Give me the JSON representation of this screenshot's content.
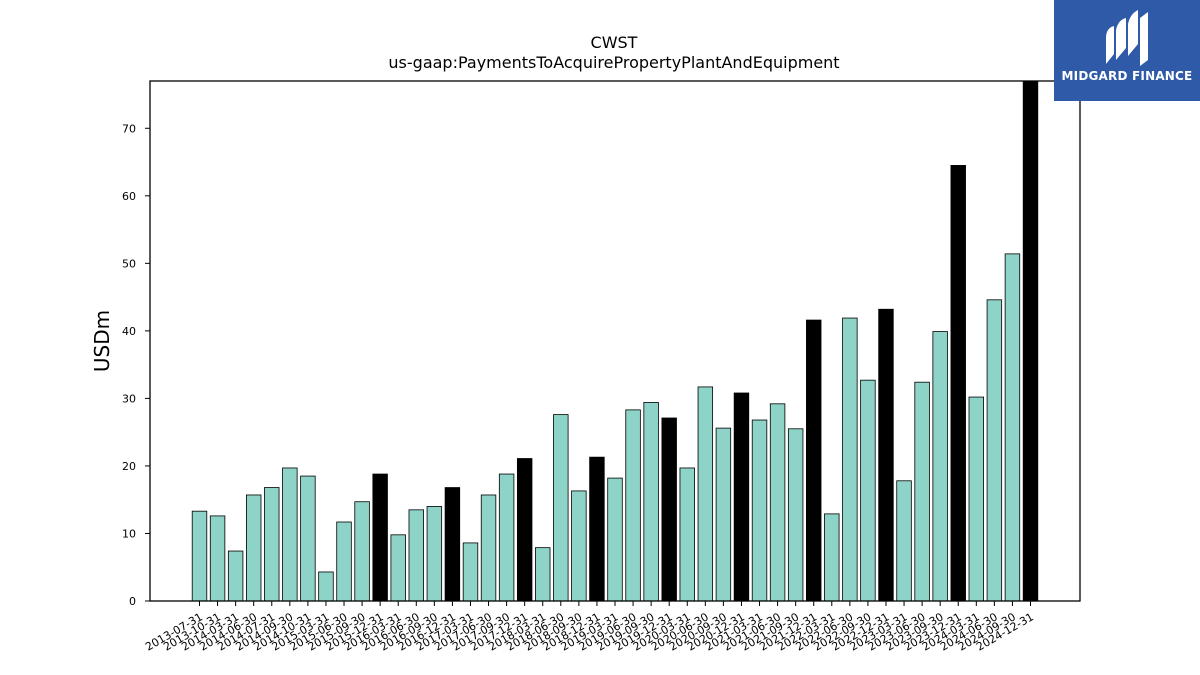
{
  "logo": {
    "text": "MIDGARD FINANCE",
    "icon": "mf-logo-icon",
    "background": "#2f5aa8"
  },
  "chart_data": {
    "type": "bar",
    "title": "CWST",
    "subtitle": "us-gaap:PaymentsToAcquirePropertyPlantAndEquipment",
    "xlabel": "",
    "ylabel": "USDm",
    "ylim": [
      0,
      77
    ],
    "yticks": [
      0,
      10,
      20,
      30,
      40,
      50,
      60,
      70
    ],
    "grid": false,
    "colors": {
      "quarter": "#8dd3c7",
      "annual": "#000000",
      "edge": "#000000"
    },
    "categories": [
      "2013-07-31",
      "2013-10-31",
      "2014-03-31",
      "2014-06-30",
      "2014-07-31",
      "2014-09-30",
      "2014-10-31",
      "2015-03-31",
      "2015-06-30",
      "2015-09-30",
      "2015-12-31",
      "2016-03-31",
      "2016-06-30",
      "2016-09-30",
      "2016-12-31",
      "2017-03-31",
      "2017-06-30",
      "2017-09-30",
      "2017-12-31",
      "2018-03-31",
      "2018-06-30",
      "2018-09-30",
      "2018-12-31",
      "2019-03-31",
      "2019-06-30",
      "2019-09-30",
      "2019-12-31",
      "2020-03-31",
      "2020-06-30",
      "2020-09-30",
      "2020-12-31",
      "2021-03-31",
      "2021-06-30",
      "2021-09-30",
      "2021-12-31",
      "2022-03-31",
      "2022-06-30",
      "2022-09-30",
      "2022-12-31",
      "2023-03-31",
      "2023-06-30",
      "2023-09-30",
      "2023-12-31",
      "2024-03-31",
      "2024-06-30",
      "2024-09-30",
      "2024-12-31"
    ],
    "values": [
      13.3,
      12.6,
      7.4,
      15.7,
      16.8,
      19.7,
      18.5,
      4.3,
      11.7,
      14.7,
      18.8,
      9.8,
      13.5,
      14.0,
      16.8,
      8.6,
      15.7,
      18.8,
      21.1,
      7.9,
      27.6,
      16.3,
      21.3,
      18.2,
      28.3,
      29.4,
      27.1,
      19.7,
      31.7,
      25.6,
      30.8,
      26.8,
      29.2,
      25.5,
      41.6,
      12.9,
      41.9,
      32.7,
      43.2,
      17.8,
      32.4,
      39.9,
      64.5,
      30.2,
      44.6,
      51.4,
      77.0
    ],
    "annual": [
      false,
      false,
      false,
      false,
      false,
      false,
      false,
      false,
      false,
      false,
      true,
      false,
      false,
      false,
      true,
      false,
      false,
      false,
      true,
      false,
      false,
      false,
      true,
      false,
      false,
      false,
      true,
      false,
      false,
      false,
      true,
      false,
      false,
      false,
      true,
      false,
      false,
      false,
      true,
      false,
      false,
      false,
      true,
      false,
      false,
      false,
      true
    ]
  }
}
